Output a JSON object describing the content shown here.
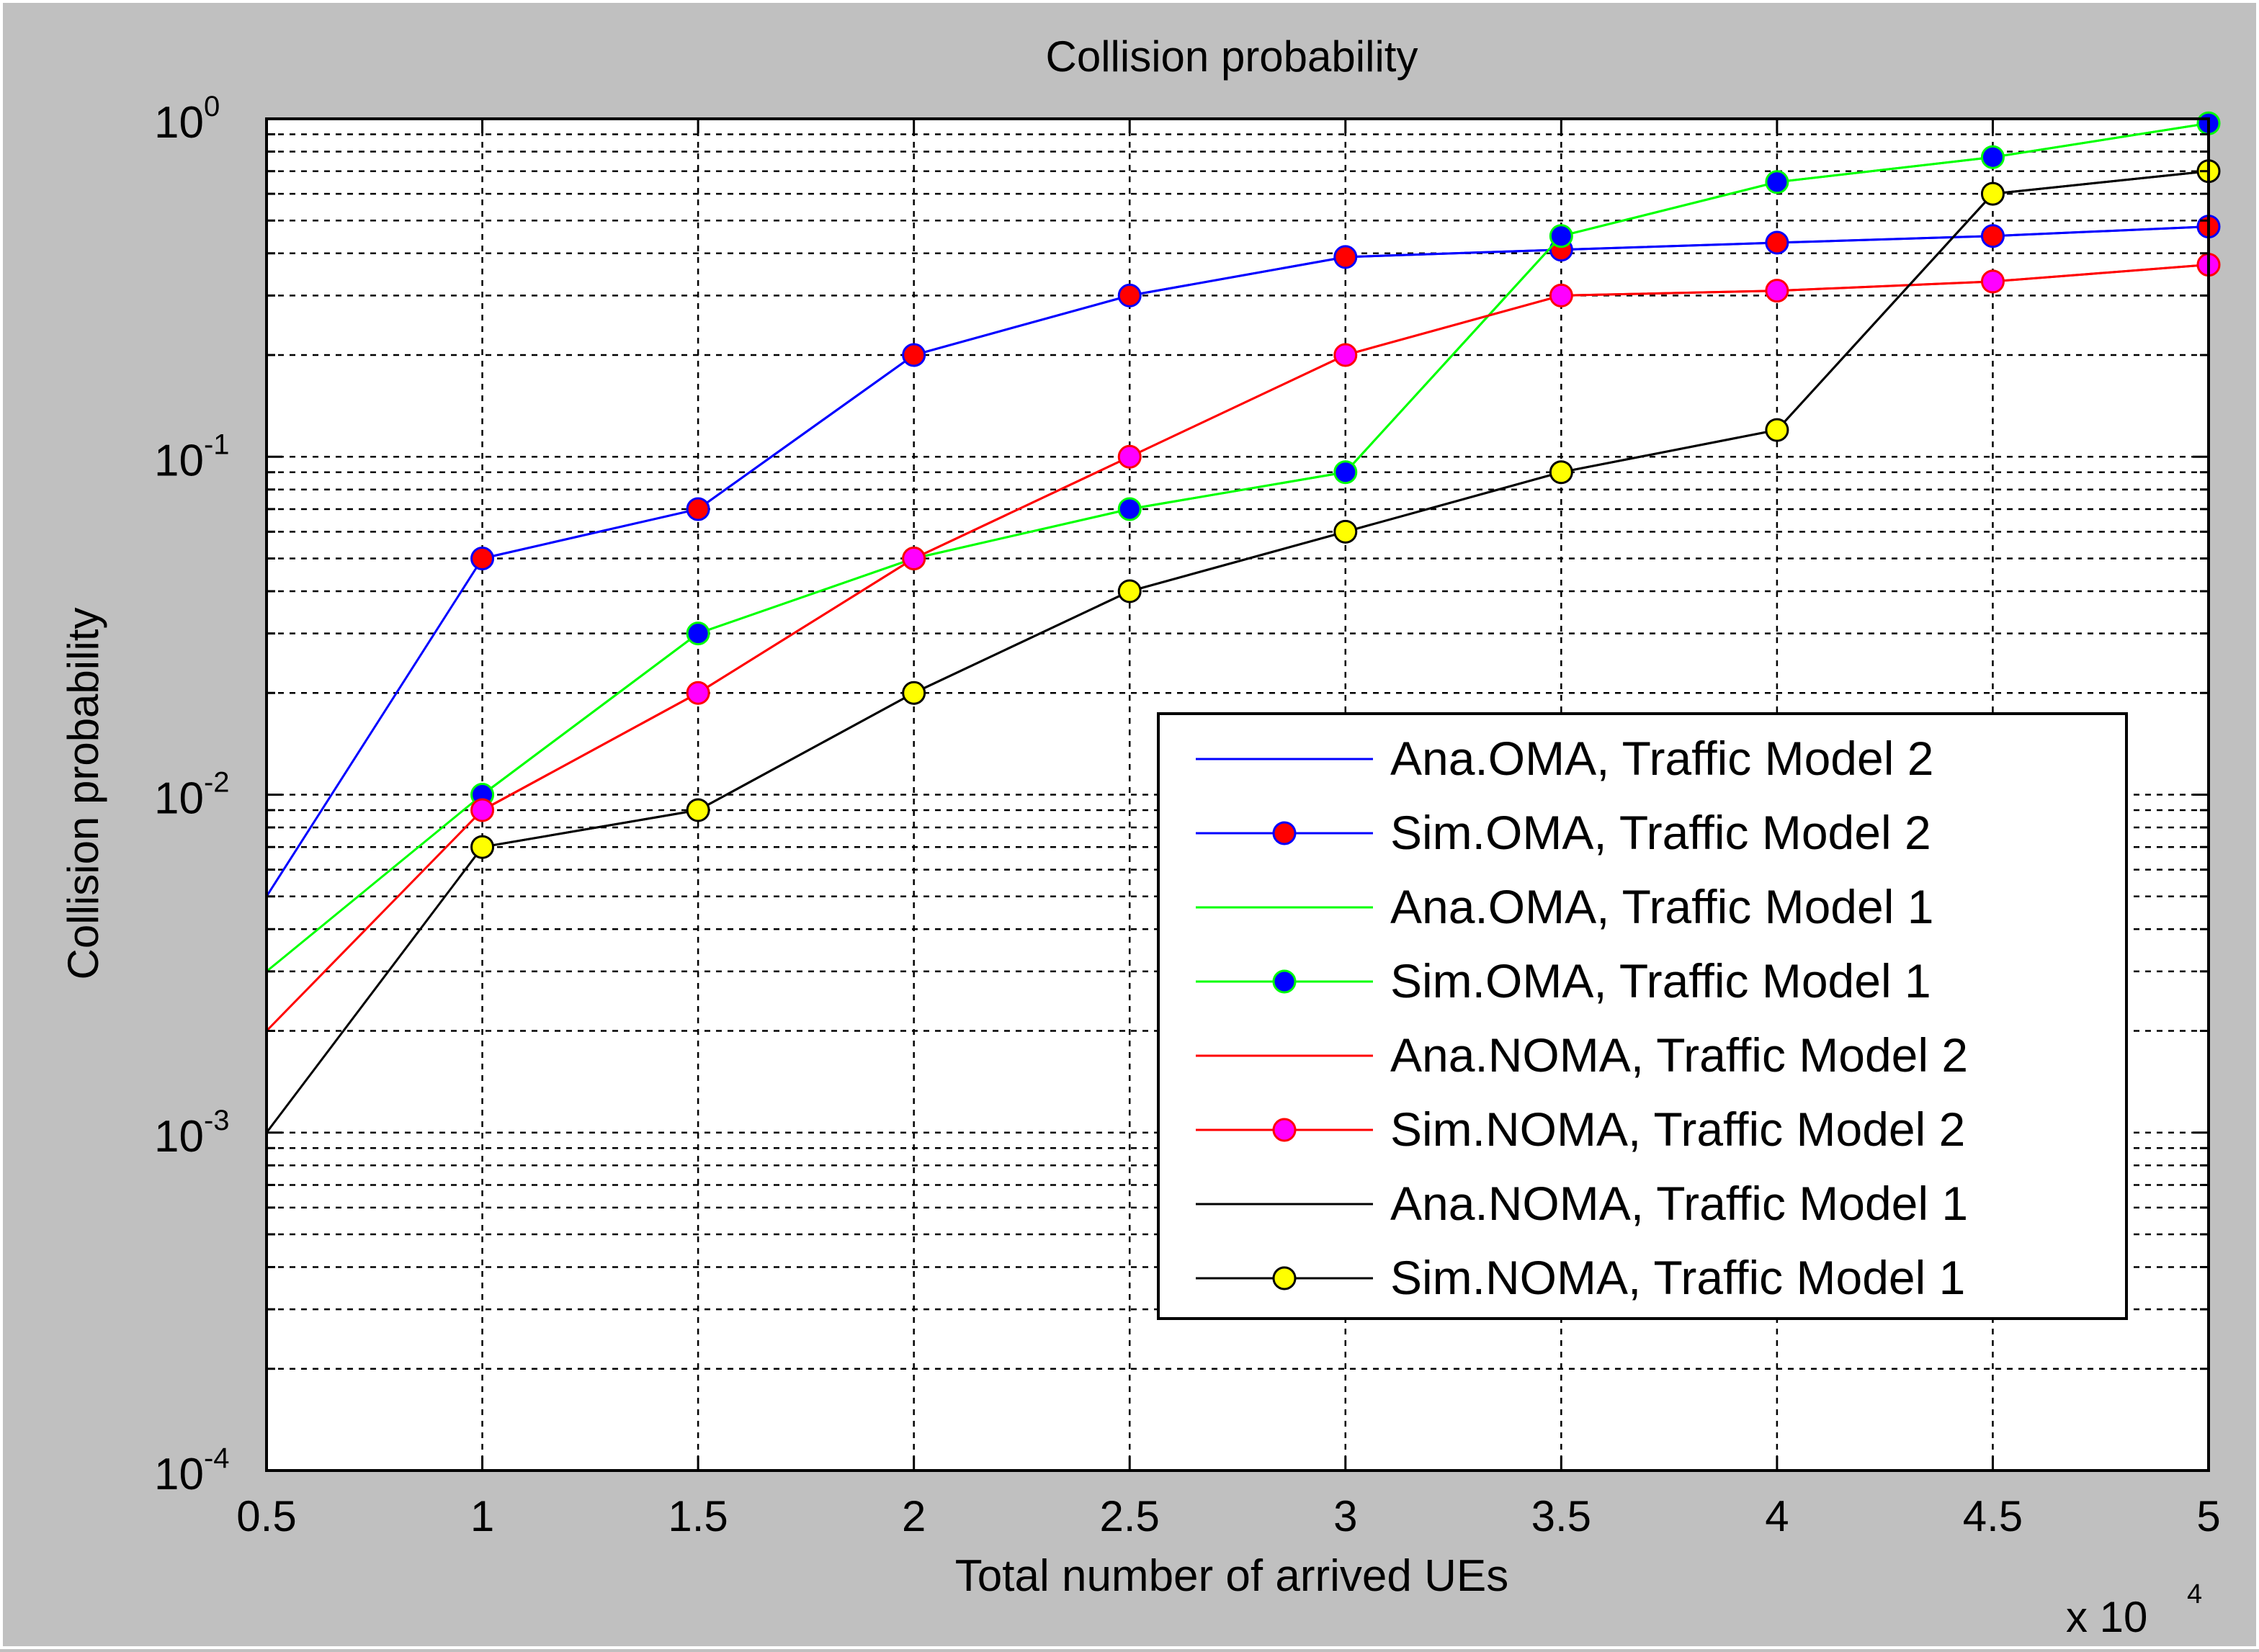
{
  "chart_data": {
    "type": "line",
    "title": "Collision probability",
    "xlabel": "Total number of arrived UEs",
    "ylabel": "Collision probability",
    "x_multiplier_label": "x 10",
    "x_multiplier_exponent": "4",
    "yscale": "log",
    "xlim": [
      0.5,
      5
    ],
    "ylim": [
      0.0001,
      1
    ],
    "grid": true,
    "legend_position": "bottom-right",
    "x_ticks": [
      0.5,
      1,
      1.5,
      2,
      2.5,
      3,
      3.5,
      4,
      4.5,
      5
    ],
    "x_tick_labels": [
      "0.5",
      "1",
      "1.5",
      "2",
      "2.5",
      "3",
      "3.5",
      "4",
      "4.5",
      "5"
    ],
    "y_ticks": [
      {
        "value": 0.0001,
        "base": "10",
        "exp": "-4"
      },
      {
        "value": 0.001,
        "base": "10",
        "exp": "-3"
      },
      {
        "value": 0.01,
        "base": "10",
        "exp": "-2"
      },
      {
        "value": 0.1,
        "base": "10",
        "exp": "-1"
      },
      {
        "value": 1,
        "base": "10",
        "exp": "0"
      }
    ],
    "x": [
      0.5,
      1,
      1.5,
      2,
      2.5,
      3,
      3.5,
      4,
      4.5,
      5
    ],
    "series": [
      {
        "name": "Ana.OMA, Traffic Model 2",
        "color": "#0000ff",
        "marker": false,
        "values": [
          0.005,
          0.05,
          0.07,
          0.2,
          0.3,
          0.39,
          0.41,
          0.43,
          0.45,
          0.48
        ]
      },
      {
        "name": "Sim.OMA, Traffic Model 2",
        "color": "#0000ff",
        "marker": true,
        "marker_fill": "#ff0000",
        "values": [
          null,
          0.05,
          0.07,
          0.2,
          0.3,
          0.39,
          0.41,
          0.43,
          0.45,
          0.48
        ]
      },
      {
        "name": "Ana.OMA, Traffic Model 1",
        "color": "#00ff00",
        "marker": false,
        "values": [
          0.003,
          0.01,
          0.03,
          0.05,
          0.07,
          0.09,
          0.45,
          0.65,
          0.77,
          0.97
        ]
      },
      {
        "name": "Sim.OMA, Traffic Model 1",
        "color": "#00ff00",
        "marker": true,
        "marker_fill": "#0000ff",
        "values": [
          null,
          0.01,
          0.03,
          0.05,
          0.07,
          0.09,
          0.45,
          0.65,
          0.77,
          0.97
        ]
      },
      {
        "name": "Ana.NOMA, Traffic Model 2",
        "color": "#ff0000",
        "marker": false,
        "values": [
          0.002,
          0.009,
          0.02,
          0.05,
          0.1,
          0.2,
          0.3,
          0.31,
          0.33,
          0.37
        ]
      },
      {
        "name": "Sim.NOMA, Traffic Model 2",
        "color": "#ff0000",
        "marker": true,
        "marker_fill": "#ff00ff",
        "values": [
          null,
          0.009,
          0.02,
          0.05,
          0.1,
          0.2,
          0.3,
          0.31,
          0.33,
          0.37
        ]
      },
      {
        "name": "Ana.NOMA, Traffic Model 1",
        "color": "#000000",
        "marker": false,
        "values": [
          0.001,
          0.007,
          0.009,
          0.02,
          0.04,
          0.06,
          0.09,
          0.12,
          0.6,
          0.7
        ]
      },
      {
        "name": "Sim.NOMA, Traffic Model 1",
        "color": "#000000",
        "marker": true,
        "marker_fill": "#ffff00",
        "values": [
          null,
          0.007,
          0.009,
          0.02,
          0.04,
          0.06,
          0.09,
          0.12,
          0.6,
          0.7
        ]
      }
    ]
  }
}
